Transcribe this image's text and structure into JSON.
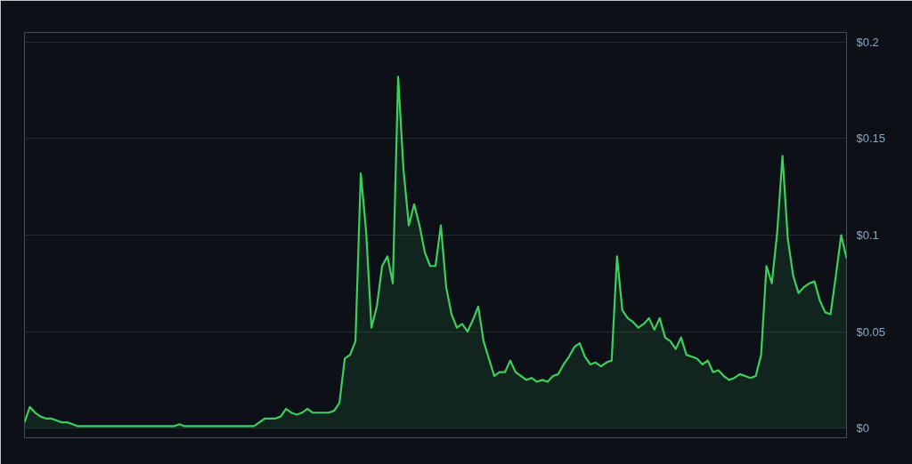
{
  "chart_data": {
    "type": "area",
    "categories": [
      null,
      null,
      null,
      null,
      null,
      null,
      null,
      null,
      null,
      null,
      null,
      null,
      null,
      null,
      null,
      null,
      null,
      null,
      null,
      null,
      null,
      null,
      null,
      null,
      null,
      null,
      null,
      null,
      null,
      null,
      null,
      null,
      null,
      null,
      null,
      null,
      null,
      null,
      null,
      null,
      null,
      null,
      null,
      null,
      null,
      null,
      null,
      null,
      null,
      null,
      null,
      null,
      null,
      null,
      null,
      null,
      null,
      null,
      null,
      null,
      null,
      null,
      null,
      null,
      null,
      null,
      null,
      null,
      null,
      null,
      null,
      null,
      null,
      null,
      null,
      null,
      null,
      null,
      null,
      null,
      null,
      null,
      null,
      null,
      null,
      null,
      null,
      null,
      null,
      null,
      null,
      null,
      null,
      null,
      null,
      null,
      null,
      null,
      null,
      null,
      null,
      null,
      null,
      null,
      null,
      null,
      null,
      null,
      null,
      null,
      null,
      null,
      null,
      null,
      null,
      null,
      null,
      null,
      null,
      null,
      null,
      null,
      null,
      null,
      null,
      null,
      null,
      null,
      null,
      null,
      null,
      null,
      null,
      null,
      null,
      null,
      null,
      null,
      null,
      null,
      null,
      null,
      null,
      null,
      null,
      null,
      null,
      null,
      null,
      null,
      null,
      null,
      null,
      null,
      null
    ],
    "series": [
      {
        "color": "#3ccf5e",
        "values": [
          0.003,
          0.011,
          0.008,
          0.006,
          0.005,
          0.005,
          0.004,
          0.003,
          0.003,
          0.002,
          0.001,
          0.001,
          0.001,
          0.001,
          0.001,
          0.001,
          0.001,
          0.001,
          0.001,
          0.001,
          0.001,
          0.001,
          0.001,
          0.001,
          0.001,
          0.001,
          0.001,
          0.001,
          0.001,
          0.002,
          0.001,
          0.001,
          0.001,
          0.001,
          0.001,
          0.001,
          0.001,
          0.001,
          0.001,
          0.001,
          0.001,
          0.001,
          0.001,
          0.001,
          0.003,
          0.005,
          0.005,
          0.005,
          0.006,
          0.01,
          0.008,
          0.007,
          0.008,
          0.01,
          0.008,
          0.008,
          0.008,
          0.008,
          0.009,
          0.013,
          0.036,
          0.038,
          0.045,
          0.132,
          0.102,
          0.052,
          0.063,
          0.084,
          0.089,
          0.075,
          0.182,
          0.134,
          0.105,
          0.116,
          0.105,
          0.091,
          0.084,
          0.084,
          0.105,
          0.073,
          0.059,
          0.052,
          0.054,
          0.05,
          0.056,
          0.063,
          0.045,
          0.036,
          0.027,
          0.029,
          0.029,
          0.035,
          0.029,
          0.027,
          0.025,
          0.026,
          0.024,
          0.025,
          0.024,
          0.027,
          0.028,
          0.033,
          0.037,
          0.042,
          0.044,
          0.037,
          0.033,
          0.034,
          0.032,
          0.034,
          0.035,
          0.089,
          0.061,
          0.057,
          0.055,
          0.052,
          0.054,
          0.057,
          0.051,
          0.057,
          0.047,
          0.045,
          0.041,
          0.047,
          0.038,
          0.037,
          0.036,
          0.033,
          0.035,
          0.029,
          0.03,
          0.027,
          0.025,
          0.026,
          0.028,
          0.027,
          0.026,
          0.027,
          0.038,
          0.084,
          0.075,
          0.101,
          0.141,
          0.098,
          0.079,
          0.07,
          0.073,
          0.075,
          0.076,
          0.066,
          0.06,
          0.059,
          0.079,
          0.1,
          0.088
        ]
      }
    ],
    "ylim": [
      -0.005,
      0.205
    ],
    "yticks": [
      {
        "value": 0,
        "label": "$0"
      },
      {
        "value": 0.05,
        "label": "$0.05"
      },
      {
        "value": 0.1,
        "label": "$0.1"
      },
      {
        "value": 0.15,
        "label": "$0.15"
      },
      {
        "value": 0.2,
        "label": "$0.2"
      }
    ],
    "grid": "y",
    "tick_labels": "y"
  }
}
